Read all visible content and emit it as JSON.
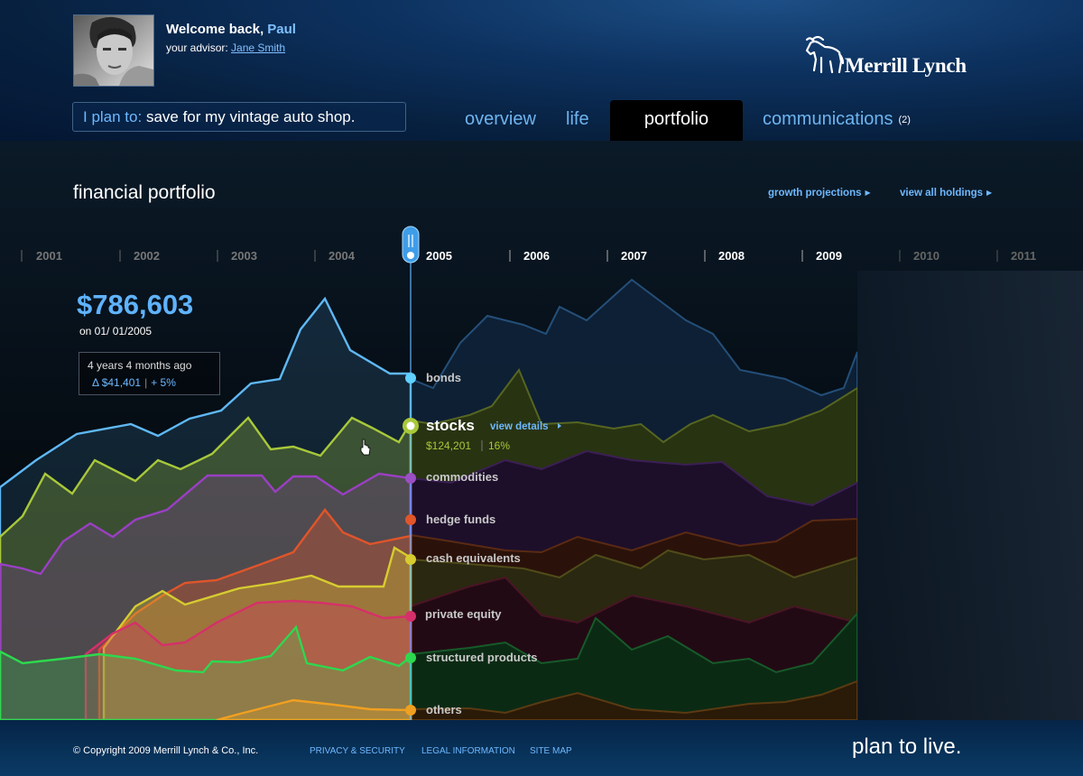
{
  "header": {
    "welcome_prefix": "Welcome back, ",
    "user_name": "Paul",
    "advisor_label": "your advisor: ",
    "advisor_name": "Jane Smith",
    "logo_text": "Merrill Lynch",
    "plan_label": "I plan to: ",
    "plan_value": "save for my vintage auto shop."
  },
  "nav": {
    "tabs": [
      {
        "label": "overview"
      },
      {
        "label": "life"
      },
      {
        "label": "portfolio",
        "active": true
      },
      {
        "label": "communications",
        "count": "(2)"
      }
    ]
  },
  "main": {
    "title": "financial portfolio",
    "links": {
      "growth": "growth projections",
      "holdings": "view all holdings"
    },
    "summary": {
      "value": "$786,603",
      "as_of": "on 01/ 01/2005",
      "change_period": "4 years 4 months ago",
      "change_amount": "Δ $41,401",
      "change_pct": "+ 5%"
    },
    "selected_year": "2005",
    "stocks_detail": {
      "link": "view details",
      "value": "$124,201",
      "pct": "16%"
    }
  },
  "colors": {
    "bonds": "#5fb8f5",
    "stocks": "#a8c83a",
    "commodities": "#9b3fc4",
    "hedge_funds": "#e0552a",
    "cash_equivalents": "#d6cc30",
    "private_equity": "#d6306a",
    "structured_products": "#2ed84e",
    "others": "#f0a020"
  },
  "chart_data": {
    "type": "area",
    "years": [
      "2001",
      "2002",
      "2003",
      "2004",
      "2005",
      "2006",
      "2007",
      "2008",
      "2009",
      "2010",
      "2011"
    ],
    "series": [
      {
        "name": "bonds"
      },
      {
        "name": "stocks"
      },
      {
        "name": "commodities"
      },
      {
        "name": "hedge funds"
      },
      {
        "name": "cash equivalents"
      },
      {
        "name": "private equity"
      },
      {
        "name": "structured products"
      },
      {
        "name": "others"
      }
    ]
  },
  "footer": {
    "copyright": "© Copyright 2009 Merrill Lynch & Co., Inc.",
    "privacy": "PRIVACY & SECURITY",
    "legal": "LEGAL INFORMATION",
    "sitemap": "SITE MAP",
    "tagline": "plan to live."
  }
}
